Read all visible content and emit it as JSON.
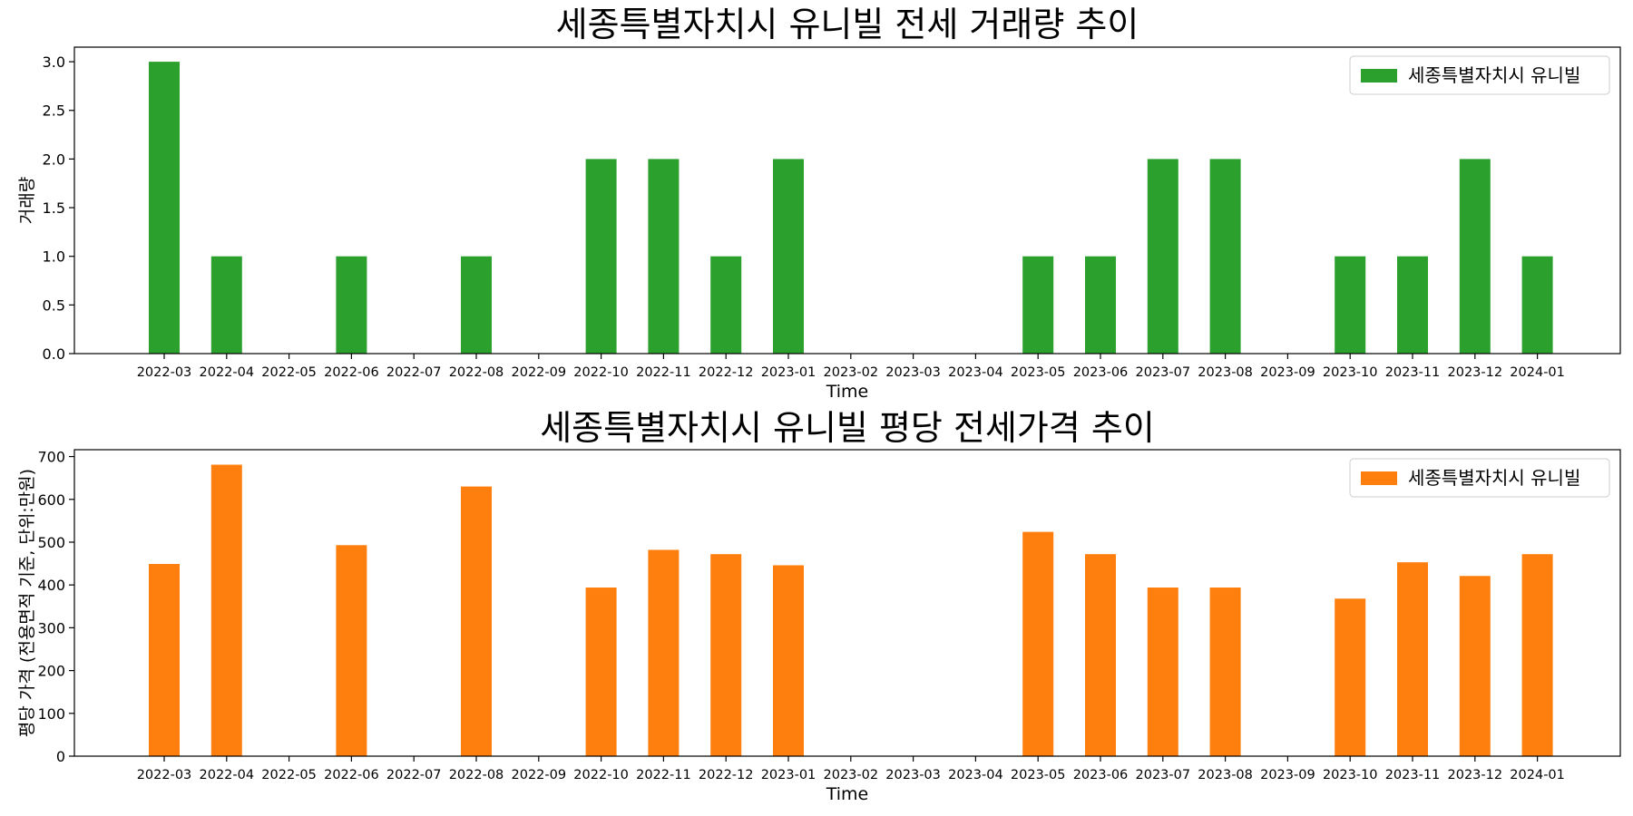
{
  "chart_data": [
    {
      "type": "bar",
      "title": "세종특별자치시 유니빌 전세 거래량 추이",
      "xlabel": "Time",
      "ylabel": "거래량",
      "ylim": [
        0,
        3.15
      ],
      "yticks": [
        "0.0",
        "0.5",
        "1.0",
        "1.5",
        "2.0",
        "2.5",
        "3.0"
      ],
      "ytick_values": [
        0,
        0.5,
        1,
        1.5,
        2,
        2.5,
        3
      ],
      "categories": [
        "2022-03",
        "2022-04",
        "2022-05",
        "2022-06",
        "2022-07",
        "2022-08",
        "2022-09",
        "2022-10",
        "2022-11",
        "2022-12",
        "2023-01",
        "2023-02",
        "2023-03",
        "2023-04",
        "2023-05",
        "2023-06",
        "2023-07",
        "2023-08",
        "2023-09",
        "2023-10",
        "2023-11",
        "2023-12",
        "2024-01"
      ],
      "series": [
        {
          "name": "세종특별자치시 유니빌",
          "color": "#2ca02c",
          "values": [
            3,
            1,
            0,
            1,
            0,
            1,
            0,
            2,
            2,
            1,
            2,
            0,
            0,
            0,
            1,
            1,
            2,
            2,
            0,
            1,
            1,
            2,
            1
          ]
        }
      ],
      "legend": "top-right",
      "grid": false
    },
    {
      "type": "bar",
      "title": "세종특별자치시 유니빌 평당 전세가격 추이",
      "xlabel": "Time",
      "ylabel": "평당 가격 (전용면적 기준, 단위:만원)",
      "ylim": [
        0,
        716
      ],
      "yticks": [
        "0",
        "100",
        "200",
        "300",
        "400",
        "500",
        "600",
        "700"
      ],
      "ytick_values": [
        0,
        100,
        200,
        300,
        400,
        500,
        600,
        700
      ],
      "categories": [
        "2022-03",
        "2022-04",
        "2022-05",
        "2022-06",
        "2022-07",
        "2022-08",
        "2022-09",
        "2022-10",
        "2022-11",
        "2022-12",
        "2023-01",
        "2023-02",
        "2023-03",
        "2023-04",
        "2023-05",
        "2023-06",
        "2023-07",
        "2023-08",
        "2023-09",
        "2023-10",
        "2023-11",
        "2023-12",
        "2024-01"
      ],
      "series": [
        {
          "name": "세종특별자치시 유니빌",
          "color": "#ff7f0e",
          "values": [
            449,
            681,
            0,
            493,
            0,
            630,
            0,
            394,
            482,
            472,
            446,
            0,
            0,
            0,
            524,
            472,
            394,
            394,
            0,
            368,
            453,
            421,
            472
          ]
        }
      ],
      "legend": "top-right",
      "grid": false
    }
  ]
}
